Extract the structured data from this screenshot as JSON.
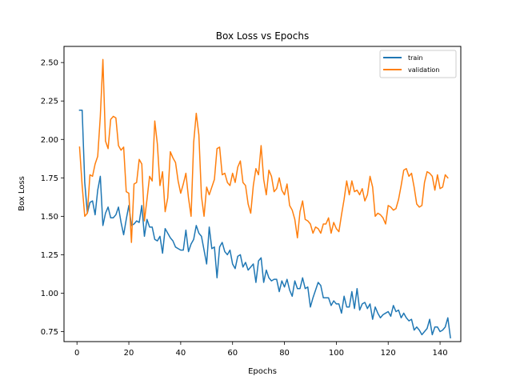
{
  "chart_data": {
    "type": "line",
    "title": "Box Loss vs Epochs",
    "xlabel": "Epochs",
    "ylabel": "Box Loss",
    "xlim": [
      -5,
      148
    ],
    "ylim": [
      0.685,
      2.605
    ],
    "xticks": [
      0,
      20,
      40,
      60,
      80,
      100,
      120,
      140
    ],
    "yticks": [
      0.75,
      1.0,
      1.25,
      1.5,
      1.75,
      2.0,
      2.25,
      2.5
    ],
    "ytick_labels": [
      "0.75",
      "1.00",
      "1.25",
      "1.50",
      "1.75",
      "2.00",
      "2.25",
      "2.50"
    ],
    "grid": false,
    "legend_position": "upper right",
    "series": [
      {
        "name": "train",
        "color": "#1f77b4",
        "x_start": 1,
        "values": [
          2.19,
          2.19,
          1.72,
          1.52,
          1.59,
          1.6,
          1.51,
          1.67,
          1.76,
          1.44,
          1.52,
          1.56,
          1.49,
          1.49,
          1.51,
          1.56,
          1.46,
          1.38,
          1.48,
          1.57,
          1.44,
          1.45,
          1.47,
          1.46,
          1.57,
          1.37,
          1.48,
          1.43,
          1.43,
          1.35,
          1.34,
          1.37,
          1.26,
          1.42,
          1.39,
          1.36,
          1.34,
          1.3,
          1.29,
          1.28,
          1.28,
          1.41,
          1.27,
          1.32,
          1.35,
          1.44,
          1.39,
          1.37,
          1.28,
          1.19,
          1.43,
          1.29,
          1.3,
          1.1,
          1.3,
          1.33,
          1.27,
          1.25,
          1.28,
          1.19,
          1.16,
          1.24,
          1.25,
          1.17,
          1.2,
          1.15,
          1.17,
          1.19,
          1.07,
          1.21,
          1.23,
          1.07,
          1.15,
          1.1,
          1.08,
          1.09,
          1.09,
          1.01,
          1.08,
          1.04,
          1.09,
          1.02,
          0.98,
          1.08,
          1.03,
          1.03,
          1.1,
          1.03,
          1.04,
          0.91,
          0.97,
          1.02,
          1.07,
          1.05,
          0.97,
          0.97,
          0.97,
          0.92,
          0.95,
          0.93,
          0.93,
          0.87,
          0.98,
          0.91,
          0.91,
          1.01,
          0.9,
          1.03,
          0.89,
          0.93,
          0.94,
          0.9,
          0.93,
          0.83,
          0.91,
          0.87,
          0.84,
          0.86,
          0.87,
          0.88,
          0.85,
          0.92,
          0.88,
          0.89,
          0.84,
          0.87,
          0.84,
          0.82,
          0.83,
          0.76,
          0.78,
          0.76,
          0.73,
          0.75,
          0.77,
          0.83,
          0.73,
          0.78,
          0.78,
          0.75,
          0.76,
          0.78,
          0.84,
          0.71
        ]
      },
      {
        "name": "validation",
        "color": "#ff7f0e",
        "x_start": 1,
        "values": [
          1.95,
          1.7,
          1.5,
          1.52,
          1.77,
          1.76,
          1.84,
          1.89,
          2.15,
          2.52,
          1.99,
          1.94,
          2.13,
          2.15,
          2.14,
          1.96,
          1.93,
          1.95,
          1.66,
          1.65,
          1.33,
          1.71,
          1.72,
          1.87,
          1.84,
          1.47,
          1.61,
          1.76,
          1.73,
          2.12,
          1.97,
          1.7,
          1.79,
          1.53,
          1.62,
          1.92,
          1.88,
          1.85,
          1.73,
          1.65,
          1.71,
          1.78,
          1.62,
          1.5,
          1.98,
          2.17,
          2.03,
          1.63,
          1.5,
          1.69,
          1.64,
          1.69,
          1.74,
          1.94,
          1.95,
          1.77,
          1.78,
          1.72,
          1.7,
          1.78,
          1.72,
          1.82,
          1.86,
          1.72,
          1.7,
          1.58,
          1.52,
          1.7,
          1.81,
          1.77,
          1.96,
          1.74,
          1.64,
          1.8,
          1.76,
          1.66,
          1.68,
          1.75,
          1.67,
          1.64,
          1.71,
          1.57,
          1.54,
          1.48,
          1.36,
          1.53,
          1.6,
          1.48,
          1.47,
          1.45,
          1.39,
          1.43,
          1.42,
          1.39,
          1.45,
          1.45,
          1.49,
          1.39,
          1.46,
          1.42,
          1.4,
          1.51,
          1.61,
          1.73,
          1.64,
          1.73,
          1.66,
          1.67,
          1.64,
          1.68,
          1.6,
          1.64,
          1.76,
          1.69,
          1.5,
          1.52,
          1.51,
          1.49,
          1.45,
          1.57,
          1.56,
          1.54,
          1.55,
          1.61,
          1.7,
          1.8,
          1.81,
          1.76,
          1.78,
          1.69,
          1.58,
          1.56,
          1.57,
          1.72,
          1.79,
          1.78,
          1.76,
          1.67,
          1.77,
          1.68,
          1.69,
          1.77,
          1.75
        ]
      }
    ]
  }
}
